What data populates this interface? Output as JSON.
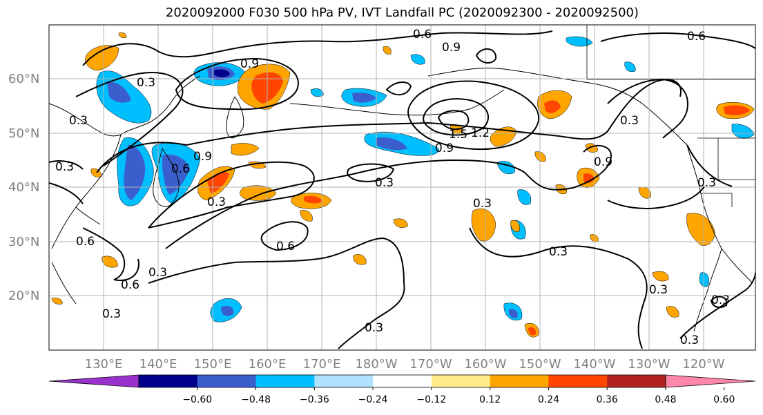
{
  "title": "2020092000 F030 500 hPa PV, IVT Landfall PC (2020092300 - 2020092500)",
  "lat_labels": [
    "60°N",
    "50°N",
    "40°N",
    "30°N",
    "20°N"
  ],
  "lon_labels": [
    "130°E",
    "140°E",
    "150°E",
    "160°E",
    "170°E",
    "180°W",
    "170°W",
    "160°W",
    "150°W",
    "140°W",
    "130°W",
    "120°W"
  ],
  "contour_labels": [
    "0.6",
    "0.9",
    "0.6",
    "0.3",
    "0.9",
    "0.3",
    "0.9",
    "0.6",
    "0.3",
    "0.3",
    "0.3",
    "0.9",
    "1.5",
    "1.2",
    "0.9",
    "0.3",
    "0.3",
    "0.6",
    "0.3",
    "0.6",
    "0.3",
    "0.6",
    "0.3",
    "0.3",
    "0.3",
    "0.3",
    "0.3",
    "0.3"
  ],
  "colorbar": {
    "ticks": [
      "−0.60",
      "−0.48",
      "−0.36",
      "−0.24",
      "−0.12",
      "0.12",
      "0.24",
      "0.36",
      "0.48",
      "0.60"
    ],
    "colors": [
      "#9932cc",
      "#00008b",
      "#3a5fcd",
      "#00bfff",
      "#b0e2ff",
      "#ffffff",
      "#ffec8b",
      "#ffa500",
      "#ff4500",
      "#b22222",
      "#ff88aa"
    ]
  }
}
